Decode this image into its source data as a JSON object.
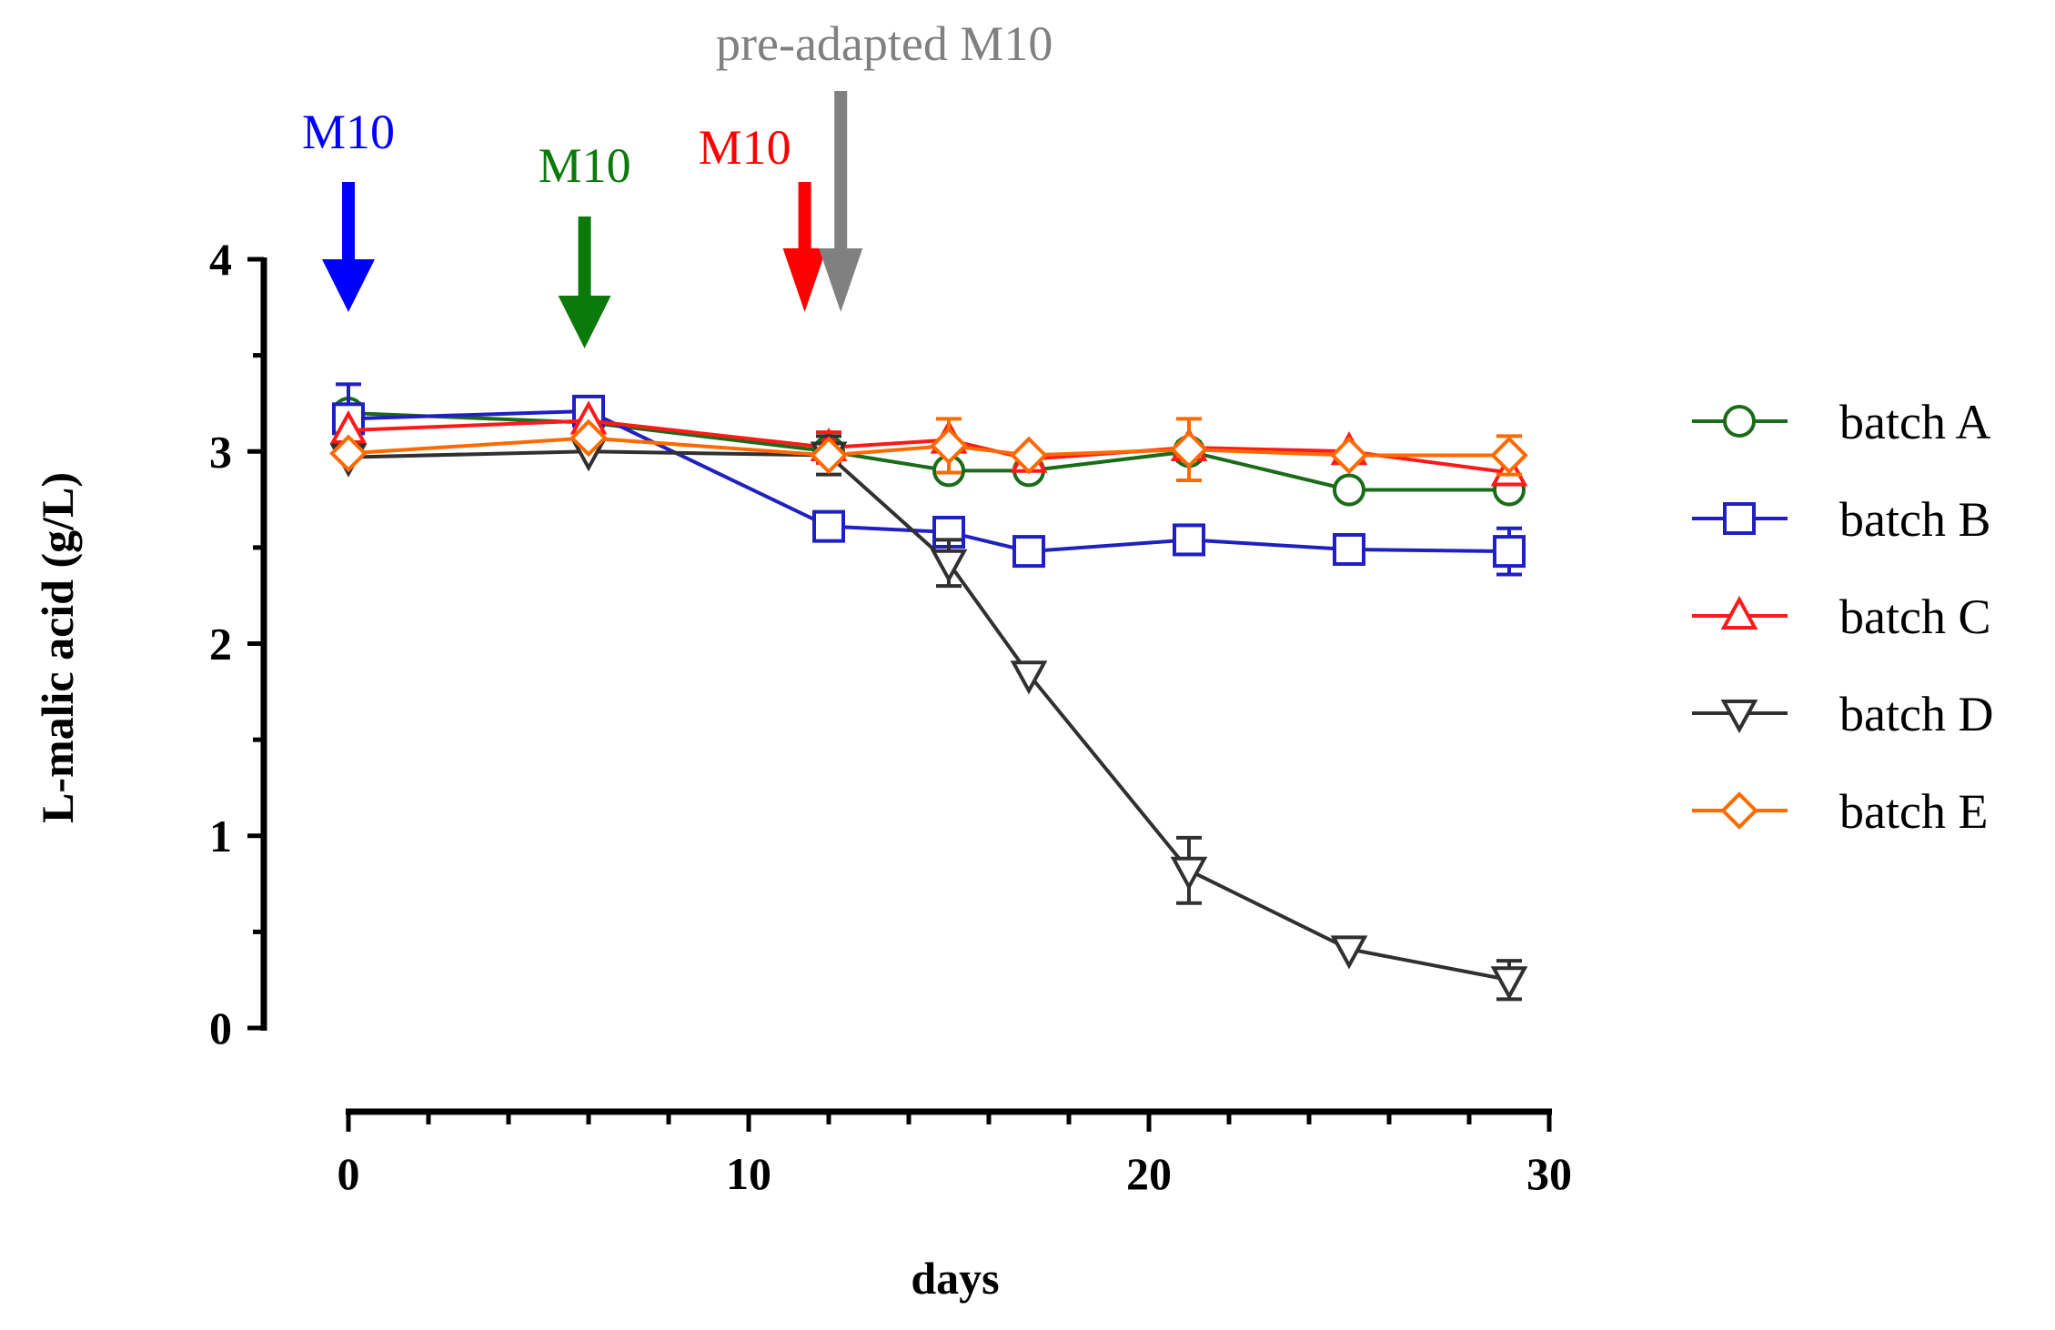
{
  "chart_data": {
    "type": "line",
    "title": "",
    "xlabel": "days",
    "ylabel": "L-malic acid (g/L)",
    "xlim": [
      0,
      30
    ],
    "ylim": [
      0,
      4
    ],
    "xticks": [
      0,
      10,
      20,
      30
    ],
    "yticks": [
      0,
      1,
      2,
      3,
      4
    ],
    "xtick_labels": [
      "0",
      "10",
      "20",
      "30"
    ],
    "ytick_labels": [
      "0",
      "1",
      "2",
      "3",
      "4"
    ],
    "grid": false,
    "legend_position": "right",
    "series": [
      {
        "name": "batch A",
        "color": "#1a6b1a",
        "marker": "circle",
        "x": [
          0,
          6,
          12,
          15,
          17,
          21,
          25,
          29
        ],
        "y": [
          3.2,
          3.15,
          3.0,
          2.9,
          2.9,
          3.0,
          2.8,
          2.8
        ],
        "err": [
          0.05,
          0.04,
          0.04,
          0.0,
          0.0,
          0.05,
          0.0,
          0.0
        ]
      },
      {
        "name": "batch B",
        "color": "#2020c0",
        "marker": "square",
        "x": [
          0,
          6,
          12,
          15,
          17,
          21,
          25,
          29
        ],
        "y": [
          3.17,
          3.21,
          2.61,
          2.58,
          2.48,
          2.54,
          2.49,
          2.48
        ],
        "err": [
          0.18,
          0.0,
          0.0,
          0.04,
          0.0,
          0.0,
          0.05,
          0.12
        ]
      },
      {
        "name": "batch C",
        "color": "#ff1a1a",
        "marker": "triangle-up",
        "x": [
          0,
          6,
          12,
          15,
          17,
          21,
          25,
          29
        ],
        "y": [
          3.11,
          3.16,
          3.02,
          3.06,
          2.96,
          3.02,
          3.0,
          2.89
        ],
        "err": [
          0.0,
          0.0,
          0.08,
          0.0,
          0.0,
          0.0,
          0.0,
          0.0
        ]
      },
      {
        "name": "batch D",
        "color": "#303030",
        "marker": "triangle-down",
        "x": [
          0,
          6,
          12,
          15,
          17,
          21,
          25,
          29
        ],
        "y": [
          2.97,
          3.0,
          2.98,
          2.42,
          1.84,
          0.82,
          0.41,
          0.25
        ],
        "err": [
          0.0,
          0.0,
          0.1,
          0.12,
          0.0,
          0.17,
          0.0,
          0.1
        ]
      },
      {
        "name": "batch E",
        "color": "#ff6a00",
        "marker": "diamond",
        "x": [
          0,
          6,
          12,
          15,
          17,
          21,
          25,
          29
        ],
        "y": [
          2.99,
          3.07,
          2.98,
          3.03,
          2.98,
          3.01,
          2.98,
          2.98
        ],
        "err": [
          0.0,
          0.0,
          0.0,
          0.14,
          0.0,
          0.16,
          0.0,
          0.1
        ]
      }
    ],
    "annotations": [
      {
        "text": "M10",
        "x": 0,
        "color": "#0000ff"
      },
      {
        "text": "M10",
        "x": 5.9,
        "color": "#0a7a0a"
      },
      {
        "text": "M10",
        "x": 11.4,
        "color": "#ff0000"
      },
      {
        "text": "pre-adapted M10",
        "x": 12.3,
        "color": "#808080"
      }
    ]
  }
}
